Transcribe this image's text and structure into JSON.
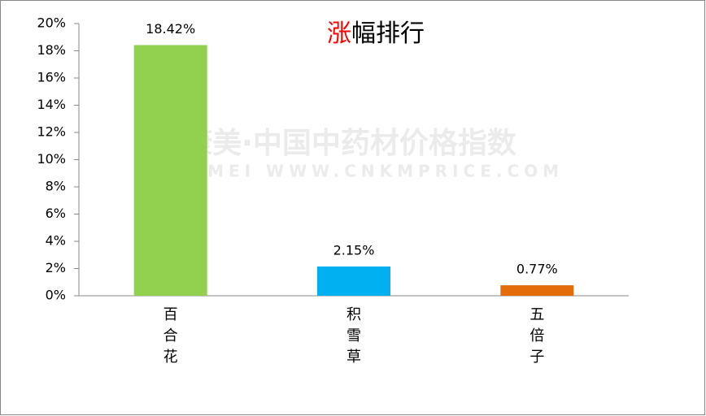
{
  "chart_data": {
    "type": "bar",
    "title": "涨幅排行",
    "watermark": [
      "康美·中国中药材价格指数",
      "KANGMEI WWW.CNKMPRICE.COM"
    ],
    "categories": [
      "百合花",
      "积雪草",
      "五倍子"
    ],
    "values": [
      18.42,
      2.15,
      0.77
    ],
    "value_labels": [
      "18.42%",
      "2.15%",
      "0.77%"
    ],
    "colors": [
      "#92d050",
      "#00b0f0",
      "#e46c0a"
    ],
    "ylim": [
      0,
      20
    ],
    "yticks": [
      {
        "value": 0,
        "label": "0%"
      },
      {
        "value": 2,
        "label": "2%"
      },
      {
        "value": 4,
        "label": "4%"
      },
      {
        "value": 6,
        "label": "6%"
      },
      {
        "value": 8,
        "label": "8%"
      },
      {
        "value": 10,
        "label": "10%"
      },
      {
        "value": 12,
        "label": "12%"
      },
      {
        "value": 14,
        "label": "14%"
      },
      {
        "value": 16,
        "label": "16%"
      },
      {
        "value": 18,
        "label": "18%"
      },
      {
        "value": 20,
        "label": "20%"
      }
    ],
    "grid": false
  }
}
